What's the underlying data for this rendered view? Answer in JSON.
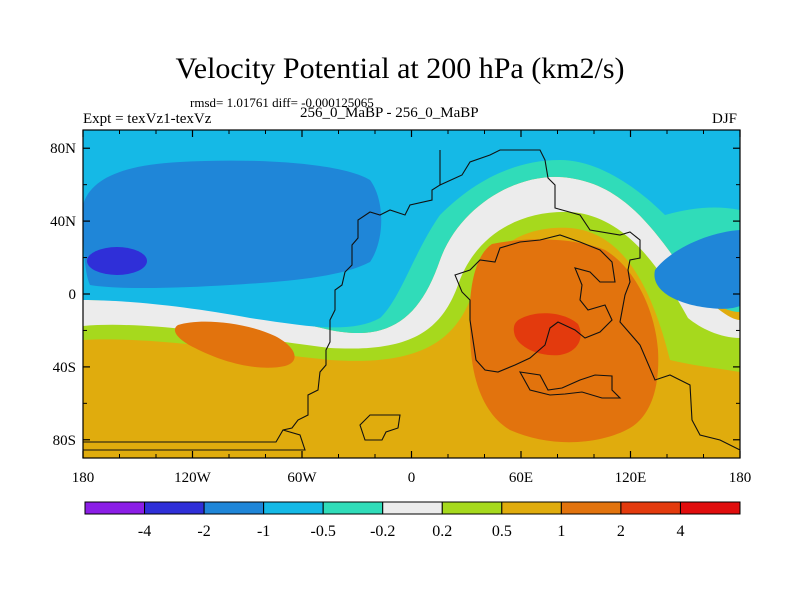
{
  "chart_data": {
    "type": "heatmap",
    "title": "Velocity Potential at 200 hPa (km2/s)",
    "stats_line": "rmsd= 1.01761 diff= -0.000125065",
    "left_label": "Expt = texVz1-texVz",
    "center_label": "256_0_MaBP - 256_0_MaBP",
    "right_label": "DJF",
    "x_ticks": [
      "180",
      "120W",
      "60W",
      "0",
      "60E",
      "120E",
      "180"
    ],
    "y_ticks": [
      "80N",
      "40N",
      "0",
      "40S",
      "80S"
    ],
    "x_range": [
      -180,
      180
    ],
    "y_range": [
      -90,
      90
    ],
    "colorbar": {
      "levels": [
        "-4",
        "-2",
        "-1",
        "-0.5",
        "-0.2",
        "0.2",
        "0.5",
        "1",
        "2",
        "4"
      ],
      "colors": [
        "#8b1ee6",
        "#2f2fd8",
        "#1f86d8",
        "#15b9e6",
        "#30dcb9",
        "#ececec",
        "#a6d91d",
        "#e0ac0d",
        "#e2730d",
        "#e33a0d",
        "#e00d0d"
      ]
    }
  }
}
